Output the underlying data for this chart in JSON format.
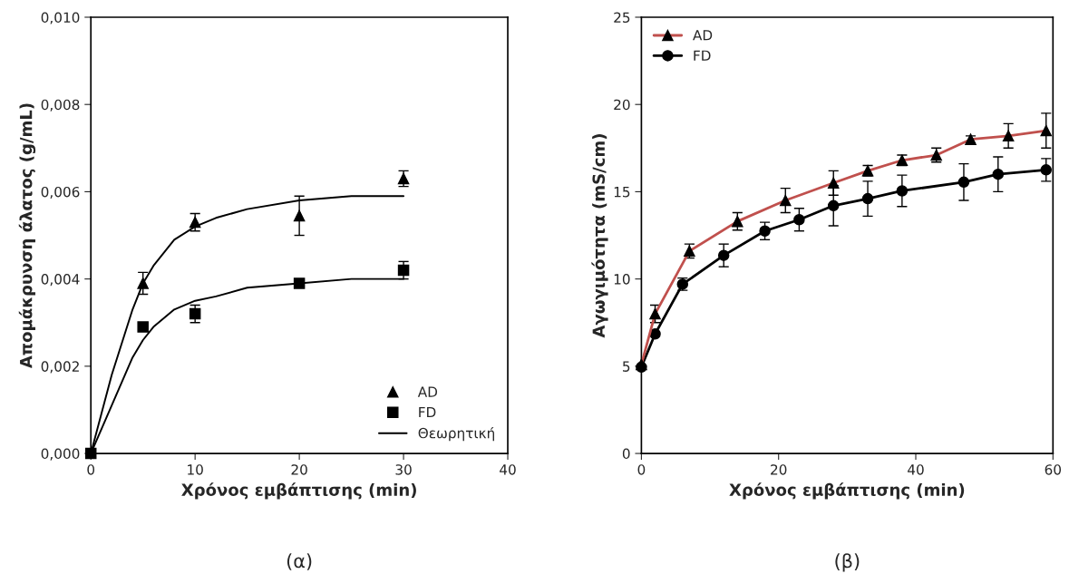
{
  "chart_data": [
    {
      "type": "scatter",
      "xlabel": "Χρόνος εμβάπτισης (min)",
      "ylabel": "Απομάκρυνση άλατος (g/mL)",
      "annotations": [
        "(α)"
      ],
      "xlim": [
        0,
        40
      ],
      "xticks": [
        0,
        10,
        20,
        30,
        40
      ],
      "ylim": [
        0,
        0.01
      ],
      "yticks": [
        {
          "value": 0,
          "label": "0,000"
        },
        {
          "value": 0.002,
          "label": "0,002"
        },
        {
          "value": 0.004,
          "label": "0,004"
        },
        {
          "value": 0.006,
          "label": "0,006"
        },
        {
          "value": 0.008,
          "label": "0,008"
        },
        {
          "value": 0.01,
          "label": "0,010"
        }
      ],
      "grid": false,
      "legend": "bottom right",
      "series": [
        {
          "name": "AD",
          "marker": "triangle",
          "color": "#000000",
          "x": [
            5,
            10,
            20,
            30
          ],
          "values": [
            0.0039,
            0.0053,
            0.00545,
            0.0063
          ],
          "errors": [
            0.00025,
            0.0002,
            0.00045,
            0.00018
          ]
        },
        {
          "name": "FD",
          "marker": "square",
          "color": "#000000",
          "x": [
            0,
            5,
            10,
            20,
            30
          ],
          "values": [
            0,
            0.0029,
            0.0032,
            0.0039,
            0.0042
          ],
          "errors": [
            null,
            null,
            0.0002,
            null,
            0.0002
          ]
        },
        {
          "name": "Θεωρητική",
          "type": "line",
          "marker": "none",
          "color": "#000000",
          "x": [
            0,
            2,
            4,
            5,
            6,
            8,
            10,
            12,
            15,
            20,
            25,
            30
          ],
          "values": [
            0,
            0.0018,
            0.0033,
            0.0039,
            0.0043,
            0.0049,
            0.0052,
            0.0054,
            0.0056,
            0.0058,
            0.0059,
            0.0059
          ]
        },
        {
          "type": "line",
          "marker": "none",
          "color": "#000000",
          "x": [
            0,
            2,
            4,
            5,
            6,
            8,
            10,
            12,
            15,
            20,
            25,
            30
          ],
          "values": [
            0,
            0.0011,
            0.0022,
            0.0026,
            0.0029,
            0.0033,
            0.0035,
            0.0036,
            0.0038,
            0.0039,
            0.004,
            0.004
          ]
        }
      ]
    },
    {
      "type": "line",
      "xlabel": "Χρόνος εμβάπτισης (min)",
      "ylabel": "Αγωγιμότητα (mS/cm)",
      "annotations": [
        "(β)"
      ],
      "xlim": [
        0,
        60
      ],
      "xticks": [
        0,
        20,
        40,
        60
      ],
      "ylim": [
        0,
        25
      ],
      "yticks": [
        0,
        5,
        10,
        15,
        20,
        25
      ],
      "grid": false,
      "legend": "top left",
      "series": [
        {
          "name": "AD",
          "marker": "triangle",
          "color": "#c0504d",
          "x": [
            0,
            2,
            7,
            14,
            21,
            28,
            33,
            38,
            43,
            48,
            53.5,
            59
          ],
          "values": [
            5.1,
            8.0,
            11.6,
            13.3,
            14.5,
            15.5,
            16.2,
            16.8,
            17.1,
            18.0,
            18.2,
            18.5
          ],
          "errors": [
            null,
            0.5,
            0.4,
            0.5,
            0.7,
            0.7,
            0.3,
            0.3,
            0.4,
            0.2,
            0.7,
            1.0
          ]
        },
        {
          "name": "FD",
          "marker": "circle",
          "color": "#000000",
          "x": [
            0,
            2,
            6,
            12,
            18,
            23,
            28,
            33,
            38,
            47,
            52,
            59
          ],
          "values": [
            4.95,
            6.85,
            9.7,
            11.35,
            12.75,
            13.4,
            14.2,
            14.6,
            15.05,
            15.55,
            16.0,
            16.25
          ],
          "errors": [
            null,
            null,
            0.35,
            0.65,
            0.5,
            0.65,
            1.15,
            1.0,
            0.9,
            1.05,
            1.0,
            0.65
          ]
        }
      ]
    }
  ]
}
